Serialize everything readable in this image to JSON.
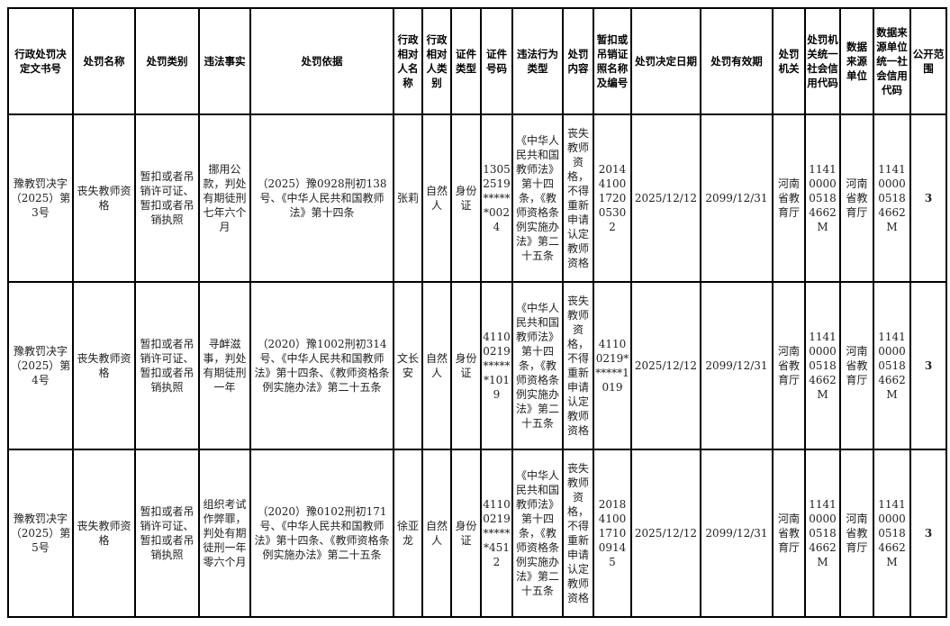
{
  "headers": [
    "行政处罚决定文书号",
    "处罚名称",
    "处罚类别",
    "违法事实",
    "处罚依据",
    "行政相对人名称",
    "行政相对人类别",
    "证件类型",
    "证件号码",
    "违法行为类型",
    "处罚内容",
    "暂扣或吊销证照名称及编号",
    "处罚决定日期",
    "处罚有效期",
    "处罚机关",
    "处罚机关统一社会信用代码",
    "数据来源单位",
    "数据来源单位统一社会信用代码",
    "公开范围"
  ],
  "rows": [
    [
      "豫教罚决字（2025）第3号",
      "丧失教师资格",
      "暂扣或者吊销许可证、暂扣或者吊销执照",
      "挪用公款，判处有期徒刑七年六个月",
      "（2025）豫0928刑初138号、《中华人民共和国教师法》第十四条",
      "张莉",
      "自然人",
      "身份证",
      "13052519******0024",
      "《中华人民共和国教师法》第十四条，《教师资格条例实施办法》第二十五条",
      "丧失教师资格，不得重新申请认定教师资格",
      "20144100172005302",
      "2025/12/12",
      "2099/12/31",
      "河南省教育厅",
      "1141000005184662M",
      "河南省教育厅",
      "1141000005184662M",
      "3"
    ],
    [
      "豫教罚决字（2025）第4号",
      "丧失教师资格",
      "暂扣或者吊销许可证、暂扣或者吊销执照",
      "寻衅滋事，判处有期徒刑一年",
      "（2020）豫1002刑初314号、《中华人民共和国教师法》第十四条、《教师资格条例实施办法》第二十五条",
      "文长安",
      "自然人",
      "身份证",
      "41100219******1019",
      "《中华人民共和国教师法》第十四条，《教师资格条例实施办法》第二十五条",
      "丧失教师资格，不得重新申请认定教师资格",
      "41100219******1019",
      "2025/12/12",
      "2099/12/31",
      "河南省教育厅",
      "1141000005184662M",
      "河南省教育厅",
      "1141000005184662M",
      "3"
    ],
    [
      "豫教罚决字（2025）第5号",
      "丧失教师资格",
      "暂扣或者吊销许可证、暂扣或者吊销执照",
      "组织考试作弊罪，判处有期徒刑一年零六个月",
      "（2020）豫0102刑初171号、《中华人民共和国教师法》第十四条、《教师资格条例实施办法》第二十五条",
      "徐亚龙",
      "自然人",
      "身份证",
      "41100219******4512",
      "《中华人民共和国教师法》第十四条，《教师资格条例实施办法》第二十五条",
      "丧失教师资格，不得重新申请认定教师资格",
      "20184100171009145",
      "2025/12/12",
      "2099/12/31",
      "河南省教育厅",
      "1141000005184662M",
      "河南省教育厅",
      "1141000005184662M",
      "3"
    ]
  ]
}
